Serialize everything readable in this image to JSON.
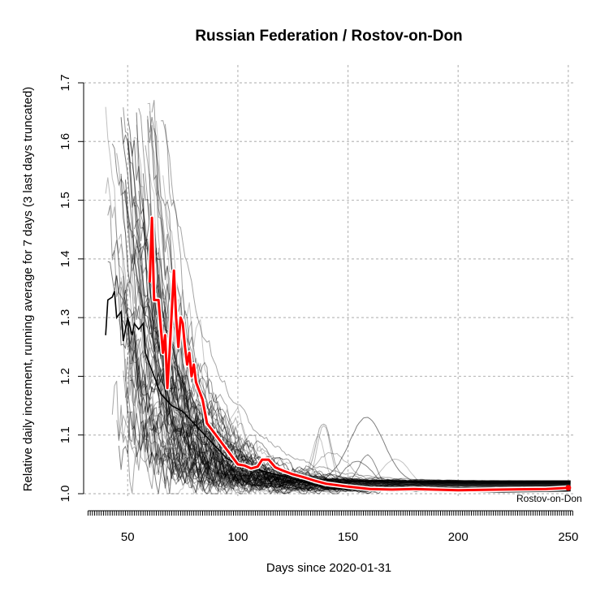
{
  "chart_data": {
    "type": "line",
    "title": "Russian Federation / Rostov-on-Don",
    "xlabel": "Days since 2020-01-31",
    "ylabel": "Relative daily increment, running average for 7 days (3 last days truncated)",
    "xlim": [
      30,
      253
    ],
    "ylim": [
      1.0,
      1.7
    ],
    "x_ticks": [
      50,
      100,
      150,
      200,
      250
    ],
    "y_ticks": [
      1.0,
      1.1,
      1.2,
      1.3,
      1.4,
      1.5,
      1.6,
      1.7
    ],
    "grid": true,
    "series": [
      {
        "name": "Rostov-on-Don",
        "color": "#ff0000",
        "x": [
          60,
          61,
          62,
          64,
          66,
          67,
          68,
          69,
          70,
          71,
          72,
          73,
          74,
          75,
          76,
          77,
          78,
          79,
          80,
          81,
          82,
          84,
          86,
          88,
          90,
          92,
          94,
          96,
          98,
          100,
          103,
          106,
          109,
          111,
          114,
          117,
          120,
          125,
          130,
          135,
          140,
          150,
          160,
          170,
          180,
          200,
          220,
          240,
          250
        ],
        "values": [
          1.36,
          1.47,
          1.33,
          1.33,
          1.24,
          1.27,
          1.18,
          1.24,
          1.31,
          1.38,
          1.3,
          1.25,
          1.3,
          1.29,
          1.25,
          1.22,
          1.24,
          1.2,
          1.22,
          1.19,
          1.18,
          1.16,
          1.12,
          1.11,
          1.1,
          1.09,
          1.08,
          1.07,
          1.06,
          1.05,
          1.048,
          1.043,
          1.046,
          1.058,
          1.058,
          1.045,
          1.04,
          1.033,
          1.028,
          1.022,
          1.017,
          1.012,
          1.008,
          1.007,
          1.008,
          1.006,
          1.007,
          1.008,
          1.01
        ]
      },
      {
        "name": "Russian Federation",
        "color": "#000000",
        "x": [
          40,
          41,
          43,
          44,
          45,
          47,
          48,
          50,
          52,
          53,
          55,
          57,
          58,
          60,
          62,
          65,
          70,
          75,
          80,
          85,
          90,
          95,
          100,
          110,
          120,
          130,
          140,
          150,
          160,
          180,
          200,
          220,
          240,
          250
        ],
        "values": [
          1.27,
          1.33,
          1.335,
          1.345,
          1.3,
          1.31,
          1.26,
          1.3,
          1.27,
          1.29,
          1.28,
          1.29,
          1.24,
          1.22,
          1.2,
          1.17,
          1.15,
          1.14,
          1.12,
          1.1,
          1.08,
          1.06,
          1.05,
          1.04,
          1.03,
          1.02,
          1.01,
          1.008,
          1.006,
          1.005,
          1.004,
          1.003,
          1.004,
          1.005
        ]
      }
    ],
    "annotations": [
      {
        "text": "Rostov-on-Don",
        "x": 250,
        "y": 1.0
      }
    ]
  }
}
